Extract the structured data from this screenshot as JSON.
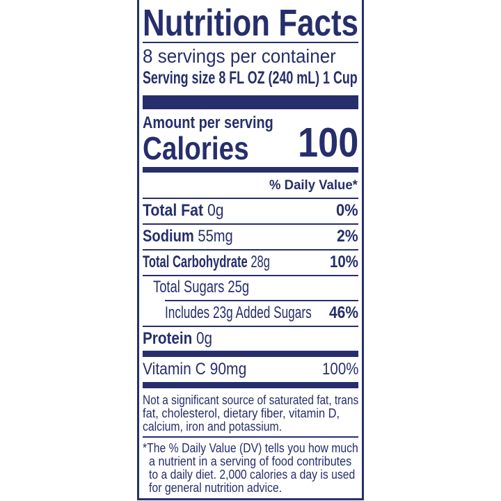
{
  "title": "Nutrition Facts",
  "servings_per_container": "8 servings per container",
  "serving_size_label": "Serving size",
  "serving_size_value": "8 FL OZ (240 mL) 1 Cup",
  "amount_per_serving": "Amount per serving",
  "calories_label": "Calories",
  "calories_value": "100",
  "daily_value_header": "% Daily Value*",
  "nutrients": [
    {
      "name": "Total Fat",
      "amount": "0g",
      "dv": "0%"
    },
    {
      "name": "Sodium",
      "amount": "55mg",
      "dv": "2%"
    },
    {
      "name": "Total Carbohydrate",
      "amount": "28g",
      "dv": "10%"
    },
    {
      "name": "Total Sugars",
      "amount": "25g",
      "dv": ""
    },
    {
      "name": "Includes 23g Added Sugars",
      "amount": "",
      "dv": "46%"
    },
    {
      "name": "Protein",
      "amount": "0g",
      "dv": ""
    },
    {
      "name": "Vitamin C",
      "amount": "90mg",
      "dv": "100%"
    }
  ],
  "not_significant": [
    "Not a significant source of saturated fat, trans",
    "fat, cholesterol, dietary fiber, vitamin D,",
    "calcium, iron and potassium."
  ],
  "dv_footnote": [
    "*The % Daily Value (DV) tells you how much",
    "a nutrient in a serving of food contributes",
    "to a daily diet. 2,000 calories a day is used",
    "for general nutrition advice."
  ],
  "colors": {
    "ink": "#262e6c",
    "background": "#ffffff"
  }
}
